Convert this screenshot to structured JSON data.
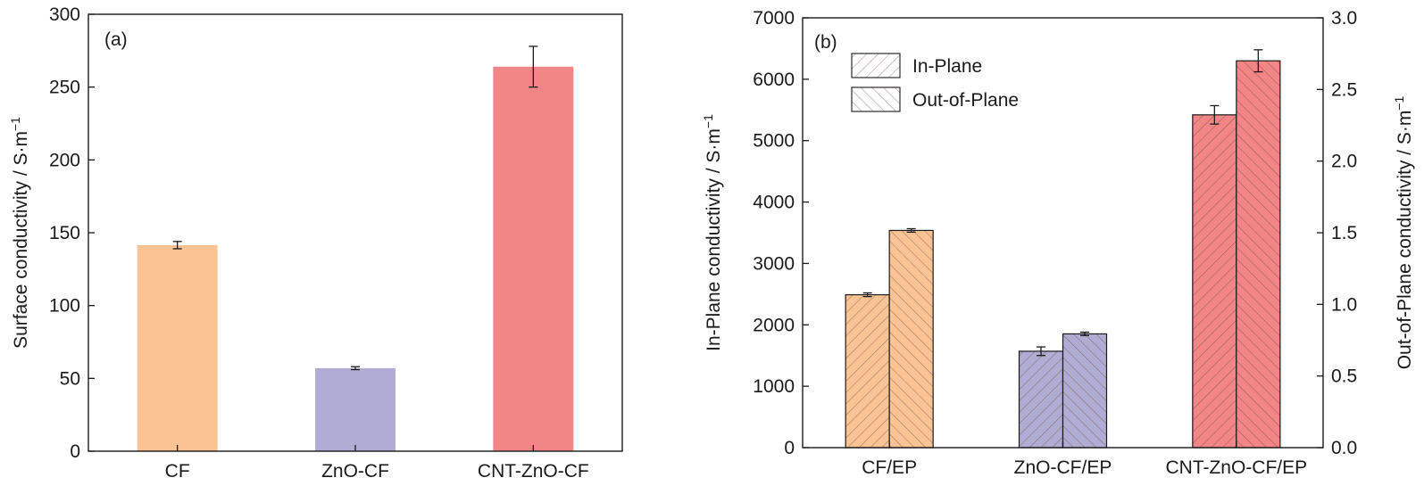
{
  "chart_data": [
    {
      "type": "bar",
      "panel_label": "(a)",
      "categories": [
        "CF",
        "ZnO-CF",
        "CNT-ZnO-CF"
      ],
      "values": [
        141.5,
        57,
        264
      ],
      "errors": [
        2.5,
        1,
        14
      ],
      "colors": [
        "#f9c394",
        "#b1acd3",
        "#f28585"
      ],
      "ylabel": "Surface conductivity / S·m",
      "ylabel_sup": "−1",
      "ylim": [
        0,
        300
      ],
      "yticks": [
        0,
        50,
        100,
        150,
        200,
        250,
        300
      ],
      "grid": false
    },
    {
      "type": "bar",
      "panel_label": "(b)",
      "categories": [
        "CF/EP",
        "ZnO-CF/EP",
        "CNT-ZnO-CF/EP"
      ],
      "colors": [
        "#f9c394",
        "#b1acd3",
        "#f28585"
      ],
      "hatch_color": "#b05a3a",
      "legend_position": "top-left",
      "series": [
        {
          "name": "In-Plane",
          "axis": "left",
          "hatch": "forward-diagonal",
          "values": [
            2490,
            1570,
            5420
          ],
          "errors": [
            30,
            70,
            150
          ]
        },
        {
          "name": "Out-of-Plane",
          "axis": "right",
          "hatch": "back-diagonal",
          "values": [
            1.516,
            0.794,
            2.7
          ],
          "errors": [
            0.012,
            0.012,
            0.077
          ]
        }
      ],
      "ylabel": "In-Plane conductivity / S·m",
      "ylabel_sup": "−1",
      "ylim": [
        0,
        7000
      ],
      "yticks": [
        0,
        1000,
        2000,
        3000,
        4000,
        5000,
        6000,
        7000
      ],
      "y2label": "Out-of-Plane conductivity / S·m",
      "y2label_sup": "−1",
      "y2lim": [
        0,
        3.0
      ],
      "y2ticks": [
        "0.0",
        "0.5",
        "1.0",
        "1.5",
        "2.0",
        "2.5",
        "3.0"
      ],
      "grid": false
    }
  ]
}
